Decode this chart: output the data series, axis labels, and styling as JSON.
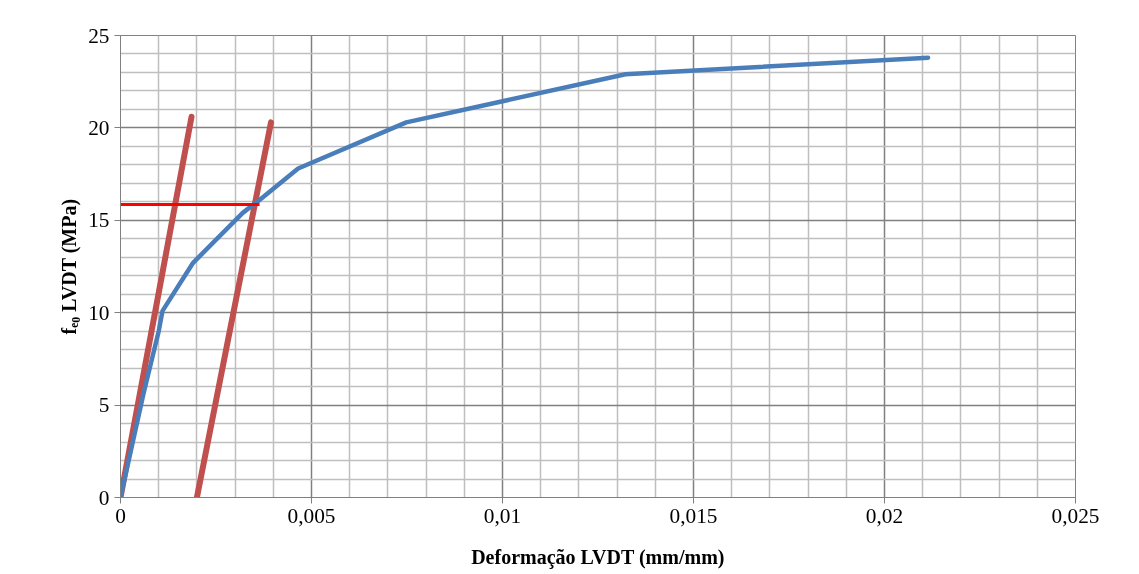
{
  "chart_data": {
    "type": "line",
    "xlabel": "Deformação LVDT (mm/mm)",
    "ylabel": "fₑ₀ LVDT (MPa)",
    "xlim": [
      0,
      0.025
    ],
    "xticks": [
      0,
      {
        "value": 0.005,
        "label": "0,005"
      },
      {
        "value": 0.01,
        "label": "0,01"
      },
      {
        "value": 0.015,
        "label": "0,015"
      },
      {
        "value": 0.02,
        "label": "0,02"
      },
      {
        "value": 0.025,
        "label": "0,025"
      }
    ],
    "ylim": [
      0,
      25
    ],
    "yticks": [
      0,
      5,
      10,
      15,
      20,
      25
    ],
    "grid": true,
    "marker": "none",
    "line_style": "solid",
    "series": [
      {
        "color": "#c0504d",
        "x": [
          0,
          0.00186
        ],
        "values": [
          0,
          20.6
        ]
      },
      {
        "color": "#c0504d",
        "x": [
          0.002,
          0.00394
        ],
        "values": [
          0,
          20.3
        ]
      },
      {
        "color": "#4a7ebb",
        "x": [
          0,
          0.0006,
          0.001,
          0.0011,
          0.0019,
          0.0032,
          0.00364,
          0.00465,
          0.00748,
          0.01322,
          0.02114
        ],
        "values": [
          0,
          5.6,
          9.0,
          10.1,
          12.7,
          15.4,
          16.1,
          17.8,
          20.3,
          22.9,
          23.8
        ]
      },
      {
        "color": "#ff0000",
        "x": [
          0,
          0.00364
        ],
        "values": [
          15.85,
          15.85
        ]
      }
    ]
  }
}
